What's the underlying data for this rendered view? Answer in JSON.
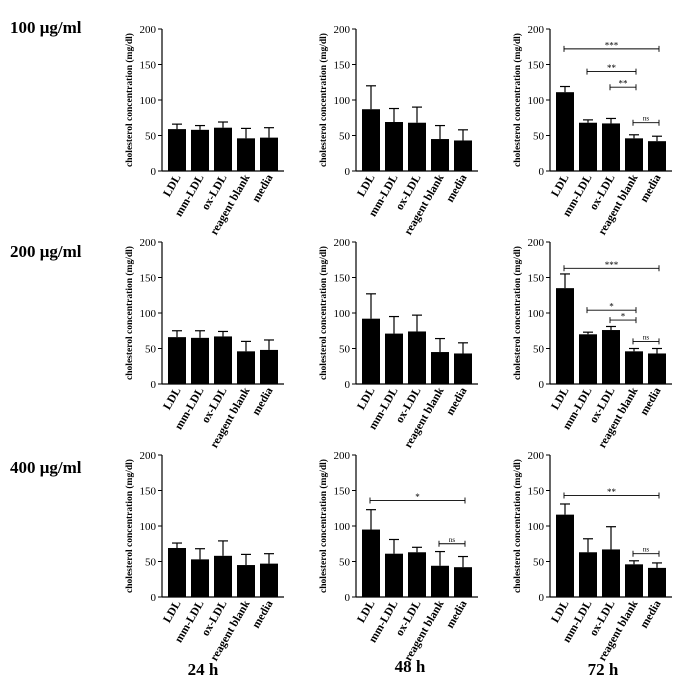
{
  "row_labels": [
    "100 μg/ml",
    "200 μg/ml",
    "400 μg/ml"
  ],
  "col_labels": [
    "24 h",
    "48 h",
    "72 h"
  ],
  "chart_data": [
    {
      "type": "bar",
      "row": 0,
      "col": 0,
      "ylabel": "cholesterol concentration (mg/dl)",
      "ylim": [
        0,
        200
      ],
      "yticks": [
        0,
        50,
        100,
        150,
        200
      ],
      "categories": [
        "LDL",
        "mm-LDL",
        "ox-LDL",
        "reagent blank",
        "media"
      ],
      "values": [
        59,
        58,
        61,
        46,
        47
      ],
      "errors": [
        7,
        6,
        8,
        14,
        14
      ],
      "annotations": []
    },
    {
      "type": "bar",
      "row": 0,
      "col": 1,
      "ylabel": "cholesterol concentration (mg/dl)",
      "ylim": [
        0,
        200
      ],
      "yticks": [
        0,
        50,
        100,
        150,
        200
      ],
      "categories": [
        "LDL",
        "mm-LDL",
        "ox-LDL",
        "reagent blank",
        "media"
      ],
      "values": [
        87,
        69,
        68,
        45,
        43
      ],
      "errors": [
        33,
        19,
        22,
        19,
        15
      ],
      "annotations": []
    },
    {
      "type": "bar",
      "row": 0,
      "col": 2,
      "ylabel": "cholesterol concentration (mg/dl)",
      "ylim": [
        0,
        200
      ],
      "yticks": [
        0,
        50,
        100,
        150,
        200
      ],
      "categories": [
        "LDL",
        "mm-LDL",
        "ox-LDL",
        "reagent blank",
        "media"
      ],
      "values": [
        111,
        68,
        67,
        46,
        42
      ],
      "errors": [
        8,
        4,
        7,
        5,
        7
      ],
      "annotations": [
        {
          "from": 0,
          "to": 4,
          "y": 172,
          "label": "***"
        },
        {
          "from": 1,
          "to": 3,
          "y": 140,
          "label": "**"
        },
        {
          "from": 2,
          "to": 3,
          "y": 118,
          "label": "**"
        },
        {
          "from": 3,
          "to": 4,
          "y": 68,
          "label": "ns"
        }
      ]
    },
    {
      "type": "bar",
      "row": 1,
      "col": 0,
      "ylabel": "cholesterol concentration (mg/dl)",
      "ylim": [
        0,
        200
      ],
      "yticks": [
        0,
        50,
        100,
        150,
        200
      ],
      "categories": [
        "LDL",
        "mm-LDL",
        "ox-LDL",
        "reagent blank",
        "media"
      ],
      "values": [
        66,
        65,
        67,
        46,
        48
      ],
      "errors": [
        9,
        10,
        7,
        14,
        14
      ],
      "annotations": []
    },
    {
      "type": "bar",
      "row": 1,
      "col": 1,
      "ylabel": "cholesterol concentration (mg/dl)",
      "ylim": [
        0,
        200
      ],
      "yticks": [
        0,
        50,
        100,
        150,
        200
      ],
      "categories": [
        "LDL",
        "mm-LDL",
        "ox-LDL",
        "reagent blank",
        "media"
      ],
      "values": [
        92,
        71,
        74,
        45,
        43
      ],
      "errors": [
        35,
        24,
        23,
        19,
        15
      ],
      "annotations": []
    },
    {
      "type": "bar",
      "row": 1,
      "col": 2,
      "ylabel": "cholesterol concentration (mg/dl)",
      "ylim": [
        0,
        200
      ],
      "yticks": [
        0,
        50,
        100,
        150,
        200
      ],
      "categories": [
        "LDL",
        "mm-LDL",
        "ox-LDL",
        "reagent blank",
        "media"
      ],
      "values": [
        135,
        70,
        76,
        46,
        43
      ],
      "errors": [
        20,
        3,
        5,
        4,
        7
      ],
      "annotations": [
        {
          "from": 0,
          "to": 4,
          "y": 163,
          "label": "***"
        },
        {
          "from": 1,
          "to": 3,
          "y": 104,
          "label": "*"
        },
        {
          "from": 2,
          "to": 3,
          "y": 90,
          "label": "*"
        },
        {
          "from": 3,
          "to": 4,
          "y": 60,
          "label": "ns"
        }
      ]
    },
    {
      "type": "bar",
      "row": 2,
      "col": 0,
      "ylabel": "cholesterol concentration (mg/dl)",
      "ylim": [
        0,
        200
      ],
      "yticks": [
        0,
        50,
        100,
        150,
        200
      ],
      "categories": [
        "LDL",
        "mm-LDL",
        "ox-LDL",
        "reagent blank",
        "media"
      ],
      "values": [
        69,
        53,
        58,
        45,
        47
      ],
      "errors": [
        7,
        15,
        21,
        15,
        14
      ],
      "annotations": []
    },
    {
      "type": "bar",
      "row": 2,
      "col": 1,
      "ylabel": "cholesterol concentration (mg/dl)",
      "ylim": [
        0,
        200
      ],
      "yticks": [
        0,
        50,
        100,
        150,
        200
      ],
      "categories": [
        "LDL",
        "mm-LDL",
        "ox-LDL",
        "reagent blank",
        "media"
      ],
      "values": [
        95,
        61,
        63,
        44,
        42
      ],
      "errors": [
        28,
        20,
        7,
        20,
        15
      ],
      "annotations": [
        {
          "from": 0,
          "to": 4,
          "y": 136,
          "label": "*"
        },
        {
          "from": 3,
          "to": 4,
          "y": 75,
          "label": "ns"
        }
      ]
    },
    {
      "type": "bar",
      "row": 2,
      "col": 2,
      "ylabel": "cholesterol concentration (mg/dl)",
      "ylim": [
        0,
        200
      ],
      "yticks": [
        0,
        50,
        100,
        150,
        200
      ],
      "categories": [
        "LDL",
        "mm-LDL",
        "ox-LDL",
        "reagent blank",
        "media"
      ],
      "values": [
        116,
        63,
        67,
        46,
        41
      ],
      "errors": [
        15,
        19,
        32,
        5,
        7
      ],
      "annotations": [
        {
          "from": 0,
          "to": 4,
          "y": 143,
          "label": "**"
        },
        {
          "from": 3,
          "to": 4,
          "y": 61,
          "label": "ns"
        }
      ]
    }
  ]
}
